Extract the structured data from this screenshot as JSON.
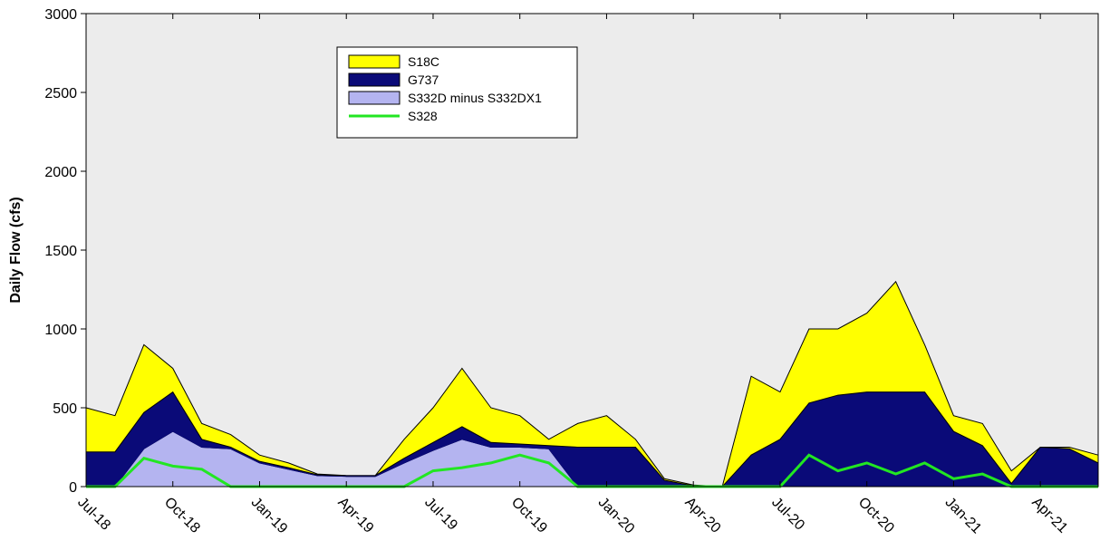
{
  "chart_data": {
    "type": "stacked-area",
    "y_label": "Daily Flow (cfs)",
    "x": [
      "2018-07",
      "2018-08",
      "2018-09",
      "2018-10",
      "2018-11",
      "2018-12",
      "2019-01",
      "2019-02",
      "2019-03",
      "2019-04",
      "2019-05",
      "2019-06",
      "2019-07",
      "2019-08",
      "2019-09",
      "2019-10",
      "2019-11",
      "2019-12",
      "2020-01",
      "2020-02",
      "2020-03",
      "2020-04",
      "2020-05",
      "2020-06",
      "2020-07",
      "2020-08",
      "2020-09",
      "2020-10",
      "2020-11",
      "2020-12",
      "2021-01",
      "2021-02",
      "2021-03",
      "2021-04",
      "2021-05",
      "2021-06"
    ],
    "xlim": [
      "2018-07",
      "2021-06"
    ],
    "xticks": [
      {
        "value": "2018-07",
        "label": "Jul-18"
      },
      {
        "value": "2018-10",
        "label": "Oct-18"
      },
      {
        "value": "2019-01",
        "label": "Jan-19"
      },
      {
        "value": "2019-04",
        "label": "Apr-19"
      },
      {
        "value": "2019-07",
        "label": "Jul-19"
      },
      {
        "value": "2019-10",
        "label": "Oct-19"
      },
      {
        "value": "2020-01",
        "label": "Jan-20"
      },
      {
        "value": "2020-04",
        "label": "Apr-20"
      },
      {
        "value": "2020-07",
        "label": "Jul-20"
      },
      {
        "value": "2020-10",
        "label": "Oct-20"
      },
      {
        "value": "2021-01",
        "label": "Jan-21"
      },
      {
        "value": "2021-04",
        "label": "Apr-21"
      }
    ],
    "ylim": [
      0,
      3000
    ],
    "yticks": [
      0,
      500,
      1000,
      1500,
      2000,
      2500,
      3000
    ],
    "series": [
      {
        "name": "S332D minus S332DX1",
        "color": "#b4b4f0",
        "stack": true,
        "values": [
          0,
          0,
          240,
          350,
          250,
          240,
          150,
          110,
          70,
          65,
          65,
          150,
          230,
          300,
          250,
          250,
          240,
          0,
          0,
          0,
          0,
          0,
          0,
          0,
          0,
          0,
          0,
          0,
          0,
          0,
          0,
          0,
          0,
          0,
          0,
          0
        ]
      },
      {
        "name": "G737",
        "color": "#0a0a78",
        "stack": true,
        "values": [
          220,
          220,
          230,
          250,
          50,
          10,
          10,
          10,
          5,
          5,
          5,
          30,
          50,
          80,
          30,
          20,
          20,
          250,
          250,
          250,
          40,
          5,
          0,
          200,
          300,
          530,
          580,
          600,
          600,
          600,
          350,
          260,
          20,
          250,
          240,
          150
        ]
      },
      {
        "name": "S18C",
        "color": "#ffff00",
        "stack": true,
        "values": [
          280,
          230,
          430,
          150,
          100,
          80,
          40,
          30,
          5,
          0,
          0,
          120,
          220,
          370,
          220,
          180,
          40,
          150,
          200,
          50,
          10,
          5,
          0,
          500,
          300,
          470,
          420,
          500,
          700,
          300,
          100,
          140,
          80,
          0,
          10,
          50
        ]
      },
      {
        "name": "S328",
        "color": "#22e622",
        "stack": false,
        "values": [
          0,
          0,
          180,
          130,
          110,
          0,
          0,
          0,
          0,
          0,
          0,
          0,
          100,
          120,
          150,
          200,
          150,
          0,
          0,
          0,
          0,
          0,
          0,
          0,
          0,
          200,
          100,
          150,
          80,
          150,
          50,
          80,
          0,
          0,
          0,
          0
        ]
      }
    ],
    "legend_order": [
      2,
      1,
      0,
      3
    ]
  }
}
